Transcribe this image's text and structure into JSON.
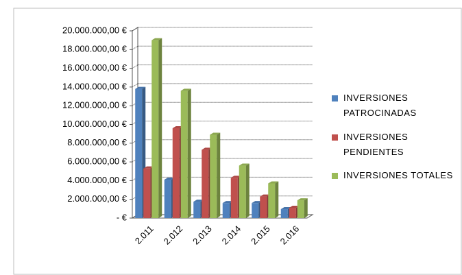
{
  "chart_data": {
    "type": "bar3d",
    "categories": [
      "2.011",
      "2.012",
      "2.013",
      "2.014",
      "2.015",
      "2.016"
    ],
    "series": [
      {
        "name": "INVERSIONES PATROCINADAS",
        "color": "#4f81bd",
        "values": [
          13800000,
          4100000,
          1750000,
          1600000,
          1600000,
          950000
        ]
      },
      {
        "name": "INVERSIONES PENDIENTES",
        "color": "#c0504d",
        "values": [
          5300000,
          9600000,
          7300000,
          4300000,
          2300000,
          1100000
        ]
      },
      {
        "name": "INVERSIONES TOTALES",
        "color": "#9bbb59",
        "values": [
          19000000,
          13600000,
          8900000,
          5600000,
          3700000,
          1900000
        ]
      }
    ],
    "ylim": [
      0,
      20000000
    ],
    "yticks": [
      {
        "value": 0,
        "label": "-  €"
      },
      {
        "value": 2000000,
        "label": "2.000.000,00 €"
      },
      {
        "value": 4000000,
        "label": "4.000.000,00 €"
      },
      {
        "value": 6000000,
        "label": "6.000.000,00 €"
      },
      {
        "value": 8000000,
        "label": "8.000.000,00 €"
      },
      {
        "value": 10000000,
        "label": "10.000.000,00 €"
      },
      {
        "value": 12000000,
        "label": "12.000.000,00 €"
      },
      {
        "value": 14000000,
        "label": "14.000.000,00 €"
      },
      {
        "value": 16000000,
        "label": "16.000.000,00 €"
      },
      {
        "value": 18000000,
        "label": "18.000.000,00 €"
      },
      {
        "value": 20000000,
        "label": "20.000.000,00 €"
      }
    ],
    "grid": true,
    "legend": "right"
  }
}
